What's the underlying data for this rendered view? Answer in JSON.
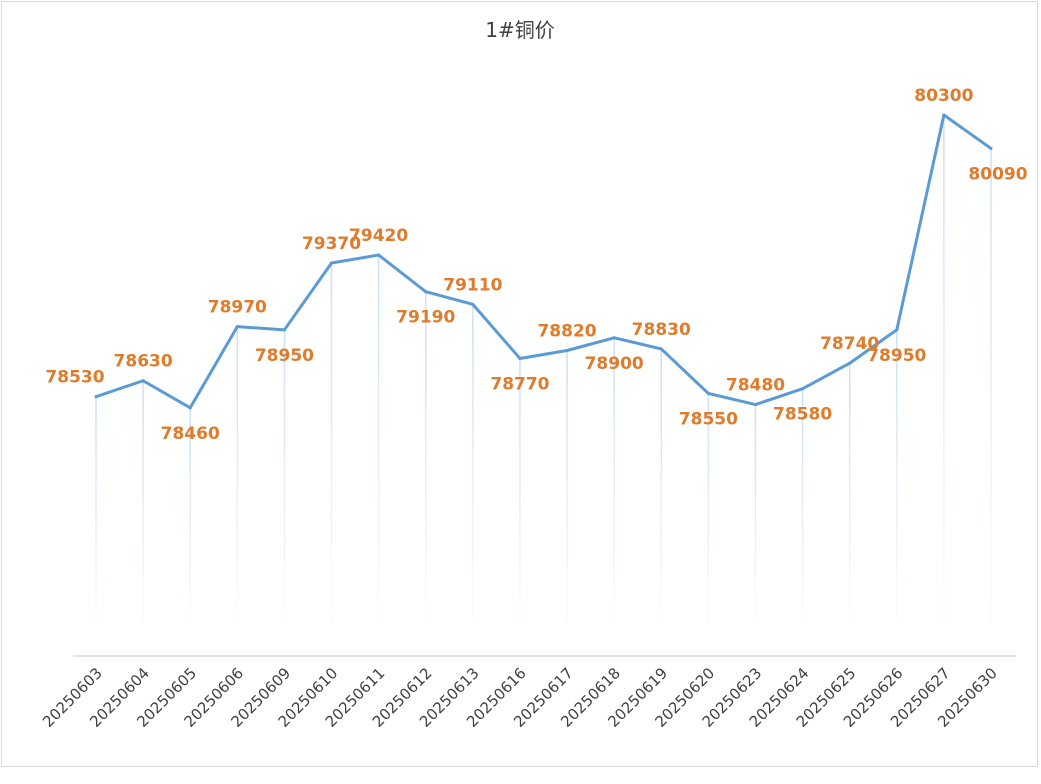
{
  "chart_data": {
    "type": "line",
    "title": "1#铜价",
    "xlabel": "",
    "ylabel": "",
    "categories": [
      "20250603",
      "20250604",
      "20250605",
      "20250606",
      "20250609",
      "20250610",
      "20250611",
      "20250612",
      "20250613",
      "20250616",
      "20250617",
      "20250618",
      "20250619",
      "20250620",
      "20250623",
      "20250624",
      "20250625",
      "20250626",
      "20250627",
      "20250630"
    ],
    "series": [
      {
        "name": "1#铜价",
        "values": [
          78530,
          78630,
          78460,
          78970,
          78950,
          79370,
          79420,
          79190,
          79110,
          78770,
          78820,
          78900,
          78830,
          78550,
          78480,
          78580,
          78740,
          78950,
          80300,
          80090
        ],
        "labels": [
          "78530",
          "78630",
          "78460",
          "78970",
          "78950",
          "79370",
          "79420",
          "79190",
          "79110",
          "78770",
          "78820",
          "78900",
          "78830",
          "78550",
          "78480",
          "78580",
          "78740",
          "78950",
          "80300",
          "80090"
        ],
        "label_positions": [
          "above",
          "above",
          "below",
          "above",
          "below",
          "above",
          "above",
          "below",
          "above",
          "below",
          "above",
          "below",
          "above",
          "below",
          "above",
          "below",
          "above",
          "below",
          "above",
          "below"
        ]
      }
    ],
    "ylim": [
      76900,
      80500
    ],
    "grid": false,
    "legend": "none",
    "colors": {
      "line": "#5b9bd5",
      "labels": "#e07b2b",
      "drop_lines": "#c9def2",
      "axis": "#d9d9d9"
    }
  }
}
